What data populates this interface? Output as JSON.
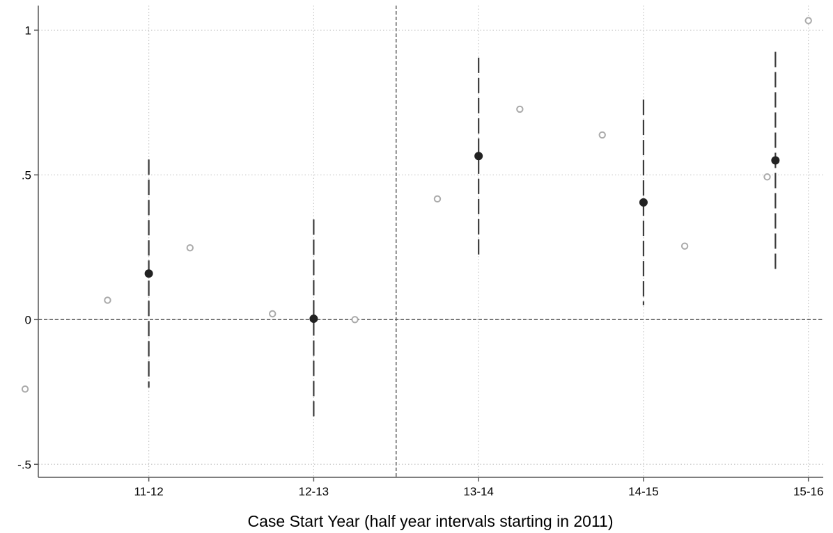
{
  "chart_data": {
    "type": "scatter",
    "title": "",
    "xlabel": "Case Start Year (half year intervals starting in 2011)",
    "ylabel": "",
    "xlim": [
      -0.67,
      4.09
    ],
    "ylim": [
      -0.545,
      1.085
    ],
    "grid": true,
    "x_ticks": [
      {
        "value": 0,
        "label": "11-12"
      },
      {
        "value": 1,
        "label": "12-13"
      },
      {
        "value": 2,
        "label": "13-14"
      },
      {
        "value": 3,
        "label": "14-15"
      },
      {
        "value": 4,
        "label": "15-16"
      }
    ],
    "y_ticks": [
      {
        "value": 1,
        "label": "1"
      },
      {
        "value": 0.5,
        "label": ".5"
      },
      {
        "value": 0,
        "label": "0"
      },
      {
        "value": -0.5,
        "label": "-.5"
      }
    ],
    "reference_lines": {
      "y": 0,
      "x": 1.5
    },
    "series": [
      {
        "marker": "hollow-circle",
        "color": "#aaaaaa",
        "points": [
          {
            "x": -0.75,
            "y": -0.24
          },
          {
            "x": -0.25,
            "y": 0.067
          },
          {
            "x": 0.25,
            "y": 0.248
          },
          {
            "x": 0.75,
            "y": 0.02
          },
          {
            "x": 1.25,
            "y": 0.0
          },
          {
            "x": 1.75,
            "y": 0.417
          },
          {
            "x": 2.25,
            "y": 0.727
          },
          {
            "x": 2.75,
            "y": 0.638
          },
          {
            "x": 3.25,
            "y": 0.254
          },
          {
            "x": 3.75,
            "y": 0.493
          },
          {
            "x": 4.0,
            "y": 1.033
          }
        ]
      },
      {
        "marker": "filled-circle",
        "color": "#222222",
        "points": [
          {
            "x": 0,
            "y": 0.159,
            "ci": [
              -0.235,
              0.553
            ]
          },
          {
            "x": 1,
            "y": 0.003,
            "ci": [
              -0.34,
              0.346
            ]
          },
          {
            "x": 2,
            "y": 0.565,
            "ci": [
              0.225,
              0.905
            ]
          },
          {
            "x": 3,
            "y": 0.405,
            "ci": [
              0.05,
              0.76
            ]
          },
          {
            "x": 3.8,
            "y": 0.55,
            "ci": [
              0.175,
              0.925
            ]
          }
        ]
      }
    ]
  }
}
